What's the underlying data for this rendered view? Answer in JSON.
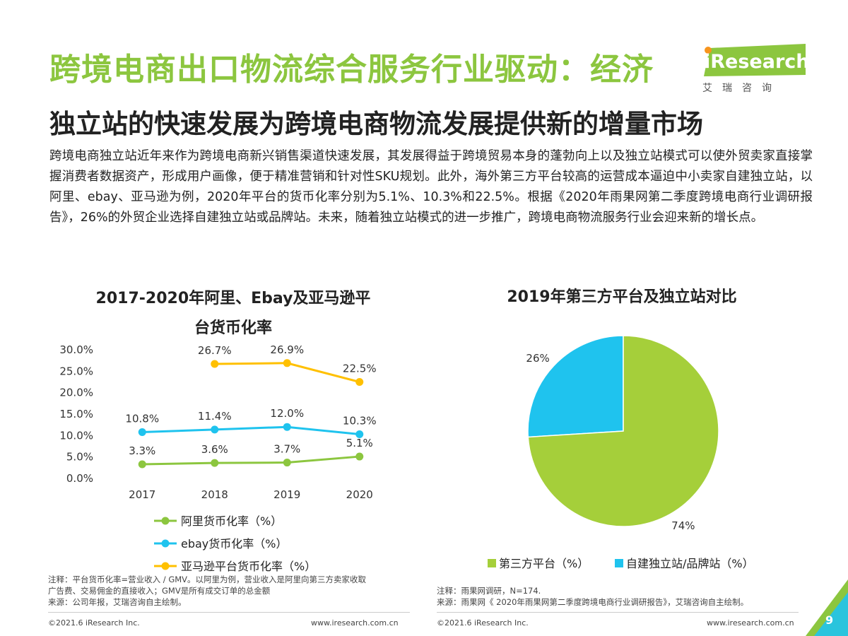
{
  "title": "跨境电商出口物流综合服务行业驱动：经济",
  "subtitle": "独立站的快速发展为跨境电商物流发展提供新的增量市场",
  "body": "跨境电商独立站近年来作为跨境电商新兴销售渠道快速发展，其发展得益于跨境贸易本身的蓬勃向上以及独立站模式可以使外贸卖家直接掌握消费者数据资产，形成用户画像，便于精准营销和针对性SKU规划。此外，海外第三方平台较高的运营成本逼迫中小卖家自建独立站，以阿里、ebay、亚马逊为例，2020年平台的货币化率分别为5.1%、10.3%和22.5%。根据《2020年雨果网第二季度跨境电商行业调研报告》，26%的外贸企业选择自建独立站或品牌站。未来，随着独立站模式的进一步推广，跨境电商物流服务行业会迎来新的增长点。",
  "logo": {
    "brand": "iResearch",
    "cn": "艾瑞咨询",
    "color": "#8cc63f"
  },
  "colors": {
    "green": "#8cc63f",
    "blue": "#1fc3ee",
    "yellow": "#ffc000"
  },
  "left_note": {
    "line1": "注释：平台货币化率=营业收入 / GMV。以阿里为例，营业收入是阿里向第三方卖家收取",
    "line2": "广告费、交易佣金的直接收入；GMV是所有成交订单的总金额",
    "line3": "来源：公司年报，艾瑞咨询自主绘制。"
  },
  "right_note": {
    "line1": "注释：雨果网调研，N=174.",
    "line2": "来源：雨果网《 2020年雨果网第二季度跨境电商行业调研报告》，艾瑞咨询自主绘制。"
  },
  "footer": {
    "copyright_left": "©2021.6 iResearch Inc.",
    "url_left": "www.iresearch.com.cn",
    "copyright_right": "©2021.6 iResearch Inc.",
    "url_right": "www.iresearch.com.cn",
    "page_number": "9"
  },
  "chart_data": [
    {
      "type": "line",
      "title": "2017-2020年阿里、Ebay及亚马逊平台货币化率",
      "title_line1": "2017-2020年阿里、Ebay及亚马逊平",
      "title_line2": "台货币化率",
      "x": [
        "2017",
        "2018",
        "2019",
        "2020"
      ],
      "ylim": [
        0,
        30
      ],
      "yticks": [
        "0.0%",
        "5.0%",
        "10.0%",
        "15.0%",
        "20.0%",
        "25.0%",
        "30.0%"
      ],
      "grid": false,
      "legend_position": "bottom",
      "series": [
        {
          "name": "阿里货币化率（%）",
          "color": "#8cc63f",
          "values": [
            3.3,
            3.6,
            3.7,
            5.1
          ],
          "labels": [
            "3.3%",
            "3.6%",
            "3.7%",
            "5.1%"
          ]
        },
        {
          "name": "ebay货币化率（%）",
          "color": "#1fc3ee",
          "values": [
            10.8,
            11.4,
            12.0,
            10.3
          ],
          "labels": [
            "10.8%",
            "11.4%",
            "12.0%",
            "10.3%"
          ]
        },
        {
          "name": "亚马逊平台货币化率（%）",
          "color": "#ffc000",
          "values": [
            null,
            26.7,
            26.9,
            22.5
          ],
          "labels": [
            "",
            "26.7%",
            "26.9%",
            "22.5%"
          ]
        }
      ]
    },
    {
      "type": "pie",
      "title": "2019年第三方平台及独立站对比",
      "legend_position": "bottom",
      "slices": [
        {
          "name": "第三方平台（%）",
          "value": 74,
          "label": "74%",
          "color": "#a5cf3a"
        },
        {
          "name": "自建独立站/品牌站（%）",
          "value": 26,
          "label": "26%",
          "color": "#1fc3ee"
        }
      ]
    }
  ]
}
